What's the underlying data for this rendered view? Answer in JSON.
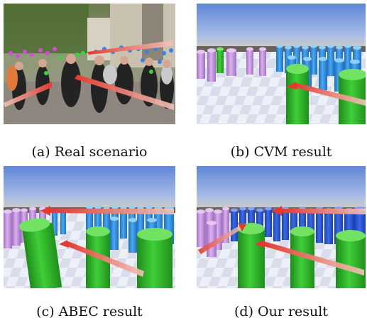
{
  "figure": {
    "panels": [
      {
        "id": "a",
        "caption": "(a) Real scenario"
      },
      {
        "id": "b",
        "caption": "(b) CVM result"
      },
      {
        "id": "c",
        "caption": "(c) ABEC result"
      },
      {
        "id": "d",
        "caption": "(d) Our result"
      }
    ]
  },
  "colors": {
    "cylinder_green": "#2fb52a",
    "cylinder_blue": "#2c8fe0",
    "cylinder_violet": "#c08fd6",
    "arrow_red": "#e8423a",
    "sky": "#6a8fd8",
    "floor": "#e6e9f4"
  }
}
